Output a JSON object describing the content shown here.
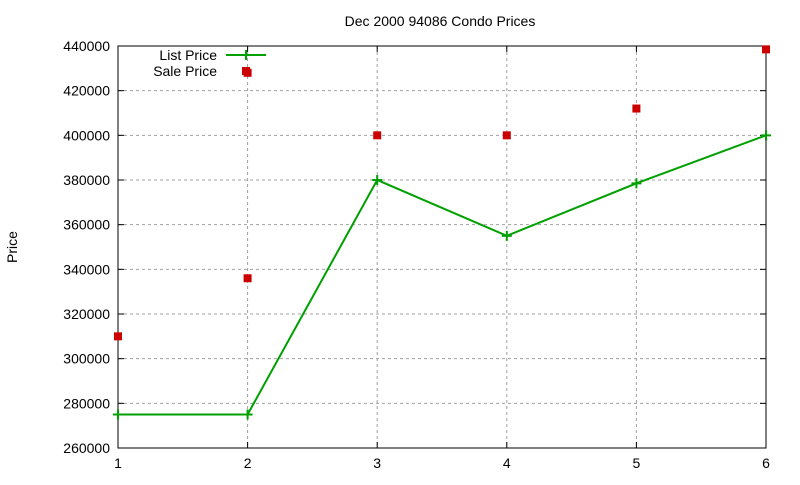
{
  "chart_data": {
    "type": "line",
    "title": "Dec 2000 94086 Condo Prices",
    "xlabel": "",
    "ylabel": "Price",
    "xlim": [
      1,
      6
    ],
    "ylim": [
      260000,
      440000
    ],
    "x_ticks": [
      1,
      2,
      3,
      4,
      5,
      6
    ],
    "y_ticks": [
      260000,
      280000,
      300000,
      320000,
      340000,
      360000,
      380000,
      400000,
      420000,
      440000
    ],
    "grid": true,
    "legend_position": "top-left",
    "series": [
      {
        "name": "List Price",
        "style": "linespoints",
        "color": "#00a000",
        "points": [
          [
            1,
            275000
          ],
          [
            2,
            275000
          ],
          [
            3,
            380000
          ],
          [
            4,
            355000
          ],
          [
            5,
            378500
          ],
          [
            6,
            400000
          ]
        ]
      },
      {
        "name": "Sale Price",
        "style": "points",
        "color": "#cc0000",
        "points": [
          [
            1,
            310000
          ],
          [
            2,
            336000
          ],
          [
            2,
            428000
          ],
          [
            3,
            400000
          ],
          [
            4,
            400000
          ],
          [
            5,
            412000
          ],
          [
            6,
            438500
          ]
        ]
      }
    ]
  }
}
